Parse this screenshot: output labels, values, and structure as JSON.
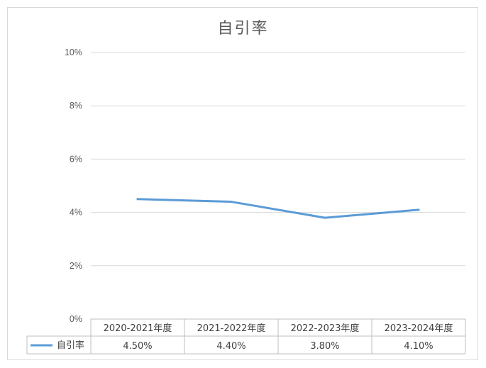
{
  "chart_data": {
    "type": "line",
    "title": "自引率",
    "categories": [
      "2020-2021年度",
      "2021-2022年度",
      "2022-2023年度",
      "2023-2024年度"
    ],
    "series": [
      {
        "name": "自引率",
        "values": [
          4.5,
          4.4,
          3.8,
          4.1
        ],
        "labels": [
          "4.50%",
          "4.40%",
          "3.80%",
          "4.10%"
        ],
        "color": "#5b9bd5"
      }
    ],
    "ylim": [
      0,
      10
    ],
    "yticks": [
      "0%",
      "2%",
      "4%",
      "6%",
      "8%",
      "10%"
    ],
    "grid": true,
    "legend_placement": "data-table"
  }
}
